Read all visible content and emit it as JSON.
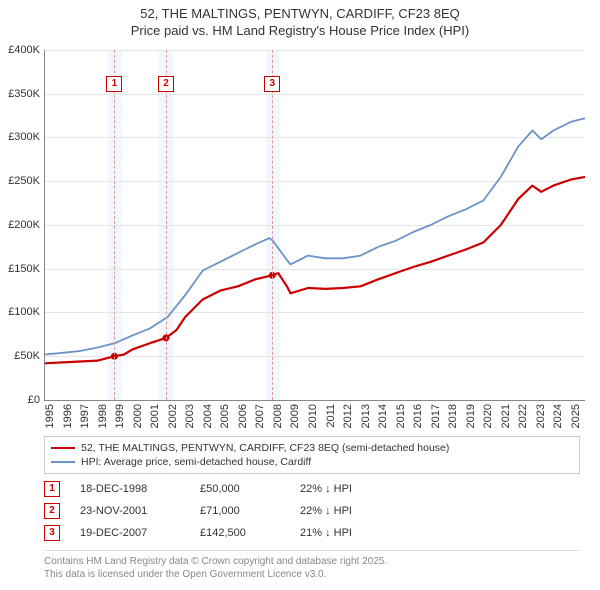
{
  "title_line1": "52, THE MALTINGS, PENTWYN, CARDIFF, CF23 8EQ",
  "title_line2": "Price paid vs. HM Land Registry's House Price Index (HPI)",
  "chart": {
    "type": "line",
    "background_color": "#ffffff",
    "grid_color": "#e6e6e6",
    "axis_color": "#888888",
    "x_range": [
      1995,
      2025.8
    ],
    "y_range": [
      0,
      400000
    ],
    "y_ticks": [
      {
        "v": 0,
        "label": "£0"
      },
      {
        "v": 50000,
        "label": "£50K"
      },
      {
        "v": 100000,
        "label": "£100K"
      },
      {
        "v": 150000,
        "label": "£150K"
      },
      {
        "v": 200000,
        "label": "£200K"
      },
      {
        "v": 250000,
        "label": "£250K"
      },
      {
        "v": 300000,
        "label": "£300K"
      },
      {
        "v": 350000,
        "label": "£350K"
      },
      {
        "v": 400000,
        "label": "£400K"
      }
    ],
    "x_ticks": [
      1995,
      1996,
      1997,
      1998,
      1999,
      2000,
      2001,
      2002,
      2003,
      2004,
      2005,
      2006,
      2007,
      2008,
      2009,
      2010,
      2011,
      2012,
      2013,
      2014,
      2015,
      2016,
      2017,
      2018,
      2019,
      2020,
      2021,
      2022,
      2023,
      2024,
      2025
    ],
    "shaded_bands": [
      {
        "from": 1998.6,
        "to": 1999.4,
        "color": "#eaf2fb"
      },
      {
        "from": 2001.5,
        "to": 2002.3,
        "color": "#eaf2fb"
      },
      {
        "from": 2007.6,
        "to": 2008.4,
        "color": "#eaf2fb"
      }
    ],
    "vlines": [
      {
        "x": 1998.96,
        "color": "#d99999"
      },
      {
        "x": 2001.9,
        "color": "#d99999"
      },
      {
        "x": 2007.96,
        "color": "#d99999"
      }
    ],
    "markers": [
      {
        "num": "1",
        "x": 1998.96,
        "y": 370000,
        "color": "#cc0000"
      },
      {
        "num": "2",
        "x": 2001.9,
        "y": 370000,
        "color": "#cc0000"
      },
      {
        "num": "3",
        "x": 2007.96,
        "y": 370000,
        "color": "#cc0000"
      }
    ],
    "series": [
      {
        "id": "price_paid",
        "color": "#cc0000",
        "width": 2.2,
        "points": [
          [
            1995,
            42000
          ],
          [
            1996,
            43000
          ],
          [
            1997,
            44000
          ],
          [
            1998,
            45000
          ],
          [
            1998.96,
            50000
          ],
          [
            1999.5,
            52000
          ],
          [
            2000,
            58000
          ],
          [
            2001,
            65000
          ],
          [
            2001.9,
            71000
          ],
          [
            2002.5,
            80000
          ],
          [
            2003,
            95000
          ],
          [
            2004,
            115000
          ],
          [
            2005,
            125000
          ],
          [
            2006,
            130000
          ],
          [
            2007,
            138000
          ],
          [
            2007.96,
            142500
          ],
          [
            2008.3,
            145000
          ],
          [
            2008.8,
            130000
          ],
          [
            2009,
            122000
          ],
          [
            2010,
            128000
          ],
          [
            2011,
            127000
          ],
          [
            2012,
            128000
          ],
          [
            2013,
            130000
          ],
          [
            2014,
            138000
          ],
          [
            2015,
            145000
          ],
          [
            2016,
            152000
          ],
          [
            2017,
            158000
          ],
          [
            2018,
            165000
          ],
          [
            2019,
            172000
          ],
          [
            2020,
            180000
          ],
          [
            2021,
            200000
          ],
          [
            2022,
            230000
          ],
          [
            2022.8,
            245000
          ],
          [
            2023.3,
            238000
          ],
          [
            2024,
            245000
          ],
          [
            2025,
            252000
          ],
          [
            2025.8,
            255000
          ]
        ]
      },
      {
        "id": "hpi",
        "color": "#6b93c9",
        "width": 1.8,
        "points": [
          [
            1995,
            52000
          ],
          [
            1996,
            54000
          ],
          [
            1997,
            56000
          ],
          [
            1998,
            60000
          ],
          [
            1999,
            65000
          ],
          [
            2000,
            74000
          ],
          [
            2001,
            82000
          ],
          [
            2002,
            95000
          ],
          [
            2003,
            120000
          ],
          [
            2004,
            148000
          ],
          [
            2005,
            158000
          ],
          [
            2006,
            168000
          ],
          [
            2007,
            178000
          ],
          [
            2007.8,
            185000
          ],
          [
            2008,
            182000
          ],
          [
            2008.8,
            160000
          ],
          [
            2009,
            155000
          ],
          [
            2010,
            165000
          ],
          [
            2011,
            162000
          ],
          [
            2012,
            162000
          ],
          [
            2013,
            165000
          ],
          [
            2014,
            175000
          ],
          [
            2015,
            182000
          ],
          [
            2016,
            192000
          ],
          [
            2017,
            200000
          ],
          [
            2018,
            210000
          ],
          [
            2019,
            218000
          ],
          [
            2020,
            228000
          ],
          [
            2021,
            255000
          ],
          [
            2022,
            290000
          ],
          [
            2022.8,
            308000
          ],
          [
            2023.3,
            298000
          ],
          [
            2024,
            308000
          ],
          [
            2025,
            318000
          ],
          [
            2025.8,
            322000
          ]
        ]
      }
    ]
  },
  "legend": {
    "rows": [
      {
        "color": "#cc0000",
        "label": "52, THE MALTINGS, PENTWYN, CARDIFF, CF23 8EQ (semi-detached house)"
      },
      {
        "color": "#6b93c9",
        "label": "HPI: Average price, semi-detached house, Cardiff"
      }
    ]
  },
  "annotations": [
    {
      "num": "1",
      "color": "#cc0000",
      "date": "18-DEC-1998",
      "price": "£50,000",
      "diff": "22% ↓ HPI"
    },
    {
      "num": "2",
      "color": "#cc0000",
      "date": "23-NOV-2001",
      "price": "£71,000",
      "diff": "22% ↓ HPI"
    },
    {
      "num": "3",
      "color": "#cc0000",
      "date": "19-DEC-2007",
      "price": "£142,500",
      "diff": "21% ↓ HPI"
    }
  ],
  "footer_line1": "Contains HM Land Registry data © Crown copyright and database right 2025.",
  "footer_line2": "This data is licensed under the Open Government Licence v3.0."
}
